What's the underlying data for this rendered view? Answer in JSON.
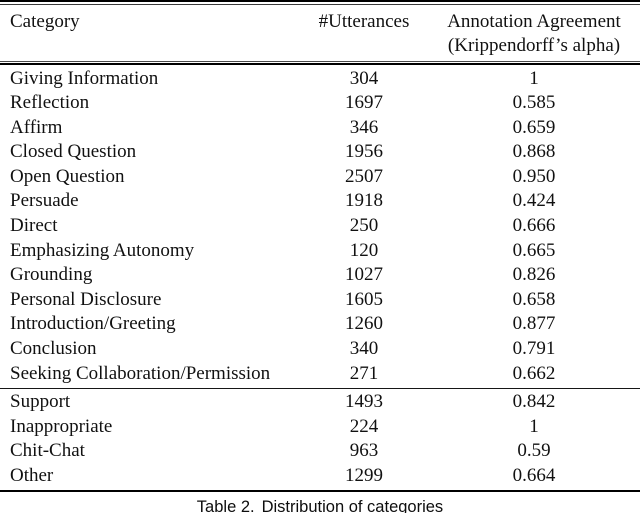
{
  "colors": {
    "background": "#ffffff",
    "text": "#111111",
    "rule": "#000000"
  },
  "table": {
    "header": {
      "category": "Category",
      "utterances": "#Utterances",
      "agreement_line1": "Annotation Agreement",
      "agreement_line2": "(Krippendorff’s alpha)"
    },
    "groups": [
      {
        "rows": [
          {
            "category": "Giving Information",
            "utterances": "304",
            "agreement": "1"
          },
          {
            "category": "Reflection",
            "utterances": "1697",
            "agreement": "0.585"
          },
          {
            "category": "Affirm",
            "utterances": "346",
            "agreement": "0.659"
          },
          {
            "category": "Closed Question",
            "utterances": "1956",
            "agreement": "0.868"
          },
          {
            "category": "Open Question",
            "utterances": "2507",
            "agreement": "0.950"
          },
          {
            "category": "Persuade",
            "utterances": "1918",
            "agreement": "0.424"
          },
          {
            "category": "Direct",
            "utterances": "250",
            "agreement": "0.666"
          },
          {
            "category": "Emphasizing Autonomy",
            "utterances": "120",
            "agreement": "0.665"
          },
          {
            "category": "Grounding",
            "utterances": "1027",
            "agreement": "0.826"
          },
          {
            "category": "Personal Disclosure",
            "utterances": "1605",
            "agreement": "0.658"
          },
          {
            "category": "Introduction/Greeting",
            "utterances": "1260",
            "agreement": "0.877"
          },
          {
            "category": "Conclusion",
            "utterances": "340",
            "agreement": "0.791"
          },
          {
            "category": "Seeking Collaboration/Permission",
            "utterances": "271",
            "agreement": "0.662"
          }
        ]
      },
      {
        "rows": [
          {
            "category": "Support",
            "utterances": "1493",
            "agreement": "0.842"
          },
          {
            "category": "Inappropriate",
            "utterances": "224",
            "agreement": "1"
          },
          {
            "category": "Chit-Chat",
            "utterances": "963",
            "agreement": "0.59"
          },
          {
            "category": "Other",
            "utterances": "1299",
            "agreement": "0.664"
          }
        ]
      }
    ],
    "caption_label": "Table 2.",
    "caption_text": "Distribution of categories"
  }
}
